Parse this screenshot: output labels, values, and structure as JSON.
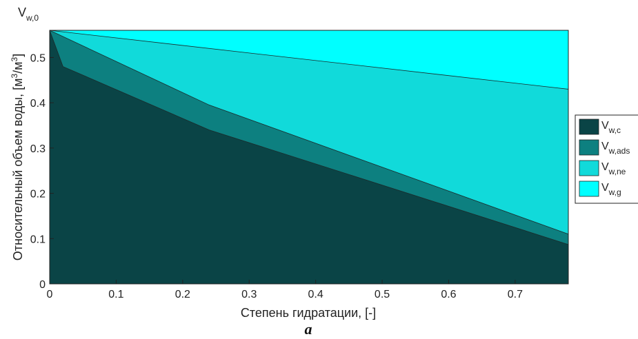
{
  "caption": "a",
  "chart_data": {
    "type": "area",
    "stacked": true,
    "xlabel": "Степень гидратации, [-]",
    "ylabel": "Относительный объем воды, [м³/м³]",
    "ylabel_parts": {
      "base": "Относительный объем воды, [м",
      "sup1": "3",
      "mid": "/м",
      "sup2": "3",
      "end": "]"
    },
    "ytop_label": {
      "base": "V",
      "sub": "w,0"
    },
    "xlim": [
      0,
      0.78
    ],
    "ylim": [
      0,
      0.56
    ],
    "xticks": [
      0,
      0.1,
      0.2,
      0.3,
      0.4,
      0.5,
      0.6,
      0.7
    ],
    "xtick_labels": [
      "0",
      "0.1",
      "0.2",
      "0.3",
      "0.4",
      "0.5",
      "0.6",
      "0.7"
    ],
    "yticks": [
      0,
      0.1,
      0.2,
      0.3,
      0.4,
      0.5
    ],
    "ytick_labels": [
      "0",
      "0.1",
      "0.2",
      "0.3",
      "0.4",
      "0.5"
    ],
    "grid": false,
    "legend_position": "right",
    "series": [
      {
        "label_base": "V",
        "label_sub": "w,c",
        "color": "#0a4446",
        "points": [
          [
            0,
            0.56
          ],
          [
            0.02,
            0.48
          ],
          [
            0.24,
            0.34
          ],
          [
            0.78,
            0.087
          ]
        ]
      },
      {
        "label_base": "V",
        "label_sub": "w,ads",
        "color": "#0d8080",
        "points": [
          [
            0,
            0.56
          ],
          [
            0.24,
            0.395
          ],
          [
            0.78,
            0.11
          ]
        ]
      },
      {
        "label_base": "V",
        "label_sub": "w,ne",
        "color": "#11dada",
        "points": [
          [
            0,
            0.56
          ],
          [
            0.78,
            0.43
          ]
        ]
      },
      {
        "label_base": "V",
        "label_sub": "w,g",
        "color": "#00ffff",
        "points": [
          [
            0,
            0.56
          ],
          [
            0.78,
            0.56
          ]
        ]
      }
    ]
  }
}
